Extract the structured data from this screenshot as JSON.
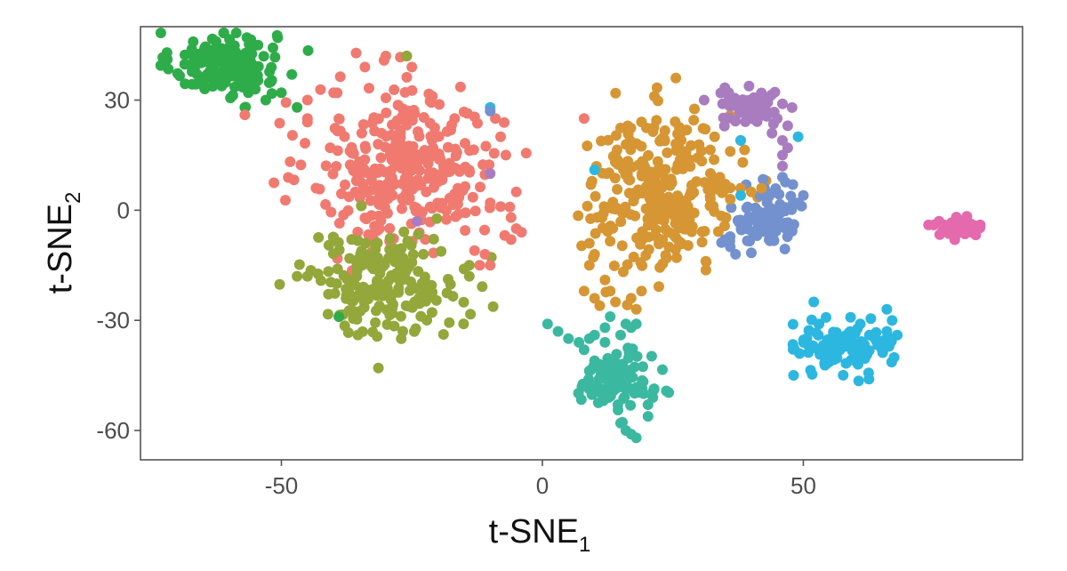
{
  "chart_data": {
    "type": "scatter",
    "xlabel": "t-SNE",
    "xlabel_subscript": "1",
    "ylabel": "t-SNE",
    "ylabel_subscript": "2",
    "xlim": [
      -77,
      92
    ],
    "ylim": [
      -68,
      50
    ],
    "x_ticks": [
      -50,
      0,
      50
    ],
    "x_tick_labels": [
      "-50",
      "0",
      "50"
    ],
    "y_ticks": [
      30,
      0,
      -30,
      -60
    ],
    "y_tick_labels": [
      "30",
      "0",
      "-30",
      "-60"
    ],
    "grid": false,
    "legend": "none",
    "clusters": [
      {
        "color": "#2eac4a",
        "center": [
          -61,
          40
        ],
        "spread": [
          5,
          4.5
        ],
        "count": 160
      },
      {
        "color": "#f07a70",
        "center": [
          -26,
          12
        ],
        "spread": [
          9,
          11
        ],
        "count": 320
      },
      {
        "color": "#93a73a",
        "center": [
          -30,
          -20
        ],
        "spread": [
          7,
          7
        ],
        "count": 190
      },
      {
        "color": "#d69633",
        "center": [
          23,
          5
        ],
        "spread": [
          7,
          11
        ],
        "count": 280
      },
      {
        "color": "#3bb8a0",
        "center": [
          14,
          -47
        ],
        "spread": [
          3.5,
          4
        ],
        "count": 110
      },
      {
        "color": "#2cb7e1",
        "center": [
          58,
          -37
        ],
        "spread": [
          4.5,
          3.5
        ],
        "count": 100
      },
      {
        "color": "#7391ce",
        "center": [
          43,
          -2
        ],
        "spread": [
          3.5,
          4
        ],
        "count": 90
      },
      {
        "color": "#a97cc0",
        "center": [
          40,
          28
        ],
        "spread": [
          3,
          2.5
        ],
        "count": 60
      },
      {
        "color": "#e46aad",
        "center": [
          80,
          -5
        ],
        "spread": [
          2,
          1
        ],
        "count": 45
      }
    ],
    "extra_points": [
      {
        "x": -52,
        "y": 35,
        "color": "#2eac4a"
      },
      {
        "x": -55,
        "y": 33,
        "color": "#2eac4a"
      },
      {
        "x": -50,
        "y": 32,
        "color": "#2eac4a"
      },
      {
        "x": -48,
        "y": 37,
        "color": "#2eac4a"
      },
      {
        "x": -53,
        "y": 30,
        "color": "#2eac4a"
      },
      {
        "x": -57,
        "y": 28,
        "color": "#2eac4a"
      },
      {
        "x": -47,
        "y": 28,
        "color": "#2eac4a"
      },
      {
        "x": -26,
        "y": 42,
        "color": "#2eac4a"
      },
      {
        "x": -39,
        "y": -29,
        "color": "#2eac4a"
      },
      {
        "x": -30,
        "y": 42,
        "color": "#f07a70"
      },
      {
        "x": -25,
        "y": 39,
        "color": "#f07a70"
      },
      {
        "x": -34,
        "y": 39,
        "color": "#f07a70"
      },
      {
        "x": -40,
        "y": 32,
        "color": "#f07a70"
      },
      {
        "x": -45,
        "y": 25,
        "color": "#f07a70"
      },
      {
        "x": -45,
        "y": 30,
        "color": "#f07a70"
      },
      {
        "x": -8,
        "y": 20,
        "color": "#f07a70"
      },
      {
        "x": -9,
        "y": 25,
        "color": "#f07a70"
      },
      {
        "x": -7,
        "y": 15,
        "color": "#f07a70"
      },
      {
        "x": -10,
        "y": 2,
        "color": "#f07a70"
      },
      {
        "x": -8,
        "y": 1,
        "color": "#f07a70"
      },
      {
        "x": -6,
        "y": -2,
        "color": "#f07a70"
      },
      {
        "x": -5,
        "y": -5,
        "color": "#f07a70"
      },
      {
        "x": -6,
        "y": -8,
        "color": "#f07a70"
      },
      {
        "x": -4,
        "y": -6,
        "color": "#f07a70"
      },
      {
        "x": -5,
        "y": 5,
        "color": "#f07a70"
      },
      {
        "x": -13,
        "y": -11,
        "color": "#f07a70"
      },
      {
        "x": -11,
        "y": -12,
        "color": "#f07a70"
      },
      {
        "x": -12,
        "y": -15,
        "color": "#f07a70"
      },
      {
        "x": -10,
        "y": -15,
        "color": "#f07a70"
      },
      {
        "x": -57,
        "y": 26,
        "color": "#f07a70"
      },
      {
        "x": -45,
        "y": 24,
        "color": "#f07a70"
      },
      {
        "x": 8,
        "y": 25,
        "color": "#f07a70"
      },
      {
        "x": -47,
        "y": -18,
        "color": "#93a73a"
      },
      {
        "x": -45,
        "y": -18,
        "color": "#93a73a"
      },
      {
        "x": -15,
        "y": -16,
        "color": "#93a73a"
      },
      {
        "x": -14,
        "y": -15,
        "color": "#93a73a"
      },
      {
        "x": -14,
        "y": -18,
        "color": "#93a73a"
      },
      {
        "x": -26,
        "y": 42,
        "color": "#93a73a"
      },
      {
        "x": 9,
        "y": -15,
        "color": "#d69633"
      },
      {
        "x": 12,
        "y": -19,
        "color": "#d69633"
      },
      {
        "x": 13,
        "y": -22,
        "color": "#d69633"
      },
      {
        "x": 10,
        "y": -24,
        "color": "#d69633"
      },
      {
        "x": 14,
        "y": -25,
        "color": "#d69633"
      },
      {
        "x": 17,
        "y": -24,
        "color": "#d69633"
      },
      {
        "x": 18,
        "y": -27,
        "color": "#d69633"
      },
      {
        "x": 19,
        "y": -22,
        "color": "#d69633"
      },
      {
        "x": 11,
        "y": -26,
        "color": "#d69633"
      },
      {
        "x": 8,
        "y": -22,
        "color": "#d69633"
      },
      {
        "x": 36,
        "y": 16,
        "color": "#d69633"
      },
      {
        "x": 33,
        "y": 20,
        "color": "#d69633"
      },
      {
        "x": 38,
        "y": 19,
        "color": "#d69633"
      },
      {
        "x": 34,
        "y": 9,
        "color": "#d69633"
      },
      {
        "x": 38,
        "y": 6,
        "color": "#d69633"
      },
      {
        "x": 40,
        "y": 5,
        "color": "#d69633"
      },
      {
        "x": 42,
        "y": 6,
        "color": "#d69633"
      },
      {
        "x": 36,
        "y": 3,
        "color": "#d69633"
      },
      {
        "x": 9,
        "y": -9,
        "color": "#d69633"
      },
      {
        "x": 10,
        "y": -12,
        "color": "#d69633"
      },
      {
        "x": 1,
        "y": -31,
        "color": "#3bb8a0"
      },
      {
        "x": 3,
        "y": -33,
        "color": "#3bb8a0"
      },
      {
        "x": 5,
        "y": -35,
        "color": "#3bb8a0"
      },
      {
        "x": 7,
        "y": -36,
        "color": "#3bb8a0"
      },
      {
        "x": 9,
        "y": -35,
        "color": "#3bb8a0"
      },
      {
        "x": 8,
        "y": -38,
        "color": "#3bb8a0"
      },
      {
        "x": 10,
        "y": -34,
        "color": "#3bb8a0"
      },
      {
        "x": 12,
        "y": -32,
        "color": "#3bb8a0"
      },
      {
        "x": 13,
        "y": -29,
        "color": "#3bb8a0"
      },
      {
        "x": 12,
        "y": -36,
        "color": "#3bb8a0"
      },
      {
        "x": 15,
        "y": -34,
        "color": "#3bb8a0"
      },
      {
        "x": 17,
        "y": -32,
        "color": "#3bb8a0"
      },
      {
        "x": 18,
        "y": -31,
        "color": "#3bb8a0"
      },
      {
        "x": 16,
        "y": -31,
        "color": "#3bb8a0"
      },
      {
        "x": 15,
        "y": -58,
        "color": "#3bb8a0"
      },
      {
        "x": 16,
        "y": -60,
        "color": "#3bb8a0"
      },
      {
        "x": 17,
        "y": -61,
        "color": "#3bb8a0"
      },
      {
        "x": 18,
        "y": -62,
        "color": "#3bb8a0"
      },
      {
        "x": 10,
        "y": -41,
        "color": "#3bb8a0"
      },
      {
        "x": 11,
        "y": -42,
        "color": "#3bb8a0"
      },
      {
        "x": 52,
        "y": -25,
        "color": "#2cb7e1"
      },
      {
        "x": 66,
        "y": -27,
        "color": "#2cb7e1"
      },
      {
        "x": 67,
        "y": -30,
        "color": "#2cb7e1"
      },
      {
        "x": 68,
        "y": -34,
        "color": "#2cb7e1"
      },
      {
        "x": 66,
        "y": -33,
        "color": "#2cb7e1"
      },
      {
        "x": 53,
        "y": -31,
        "color": "#2cb7e1"
      },
      {
        "x": -10,
        "y": 28,
        "color": "#2cb7e1"
      },
      {
        "x": 10,
        "y": 11,
        "color": "#2cb7e1"
      },
      {
        "x": 38,
        "y": 4,
        "color": "#2cb7e1"
      },
      {
        "x": 38,
        "y": 19,
        "color": "#2cb7e1"
      },
      {
        "x": 49,
        "y": 20,
        "color": "#2cb7e1"
      },
      {
        "x": 46,
        "y": 9,
        "color": "#7391ce"
      },
      {
        "x": 48,
        "y": 7,
        "color": "#7391ce"
      },
      {
        "x": 50,
        "y": 4,
        "color": "#7391ce"
      },
      {
        "x": 49,
        "y": 2,
        "color": "#7391ce"
      },
      {
        "x": 36,
        "y": -10,
        "color": "#7391ce"
      },
      {
        "x": 37,
        "y": -12,
        "color": "#7391ce"
      },
      {
        "x": 35,
        "y": -8,
        "color": "#7391ce"
      },
      {
        "x": -10,
        "y": 27,
        "color": "#7391ce"
      },
      {
        "x": 44,
        "y": 21,
        "color": "#a97cc0"
      },
      {
        "x": 46,
        "y": 19,
        "color": "#a97cc0"
      },
      {
        "x": 47,
        "y": 17,
        "color": "#a97cc0"
      },
      {
        "x": 46,
        "y": 15,
        "color": "#a97cc0"
      },
      {
        "x": 47,
        "y": 23,
        "color": "#a97cc0"
      },
      {
        "x": 45,
        "y": 25,
        "color": "#a97cc0"
      },
      {
        "x": 46,
        "y": 29,
        "color": "#a97cc0"
      },
      {
        "x": 31,
        "y": 30,
        "color": "#a97cc0"
      },
      {
        "x": -10,
        "y": 10,
        "color": "#a97cc0"
      },
      {
        "x": -24,
        "y": -3,
        "color": "#a97cc0"
      },
      {
        "x": 46,
        "y": 12,
        "color": "#a97cc0"
      },
      {
        "x": 74,
        "y": -4,
        "color": "#e46aad"
      },
      {
        "x": 75,
        "y": -4,
        "color": "#e46aad"
      },
      {
        "x": 76,
        "y": -3,
        "color": "#e46aad"
      },
      {
        "x": 77,
        "y": -4,
        "color": "#e46aad"
      }
    ]
  }
}
